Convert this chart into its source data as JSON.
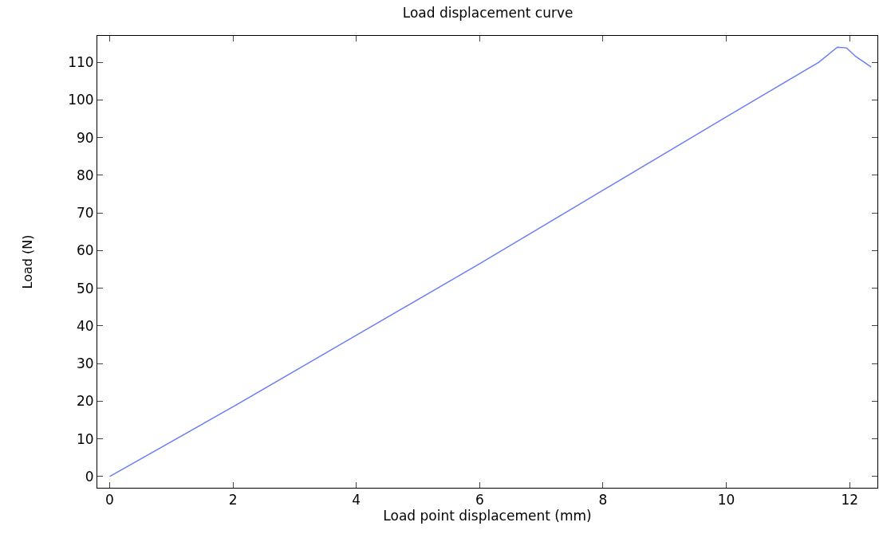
{
  "chart_data": {
    "type": "line",
    "title": "Load displacement curve",
    "xlabel": "Load point displacement (mm)",
    "ylabel": "Load (N)",
    "x": [
      0,
      2,
      4,
      6,
      8,
      10,
      11.5,
      11.8,
      11.95,
      12.1,
      12.35
    ],
    "series": [
      {
        "color": "#6b7ff5",
        "values": [
          0,
          18.5,
          37.5,
          56.5,
          76,
          95.5,
          110,
          114,
          113.8,
          111.5,
          108.7
        ]
      }
    ],
    "xlim": [
      -0.2,
      12.45
    ],
    "xticks": [
      0,
      2,
      4,
      6,
      8,
      10,
      12
    ],
    "ylim": [
      -3,
      117
    ],
    "yticks": [
      0,
      10,
      20,
      30,
      40,
      50,
      60,
      70,
      80,
      90,
      100,
      110
    ],
    "grid": false,
    "marker": "none",
    "line_style": "solid"
  }
}
